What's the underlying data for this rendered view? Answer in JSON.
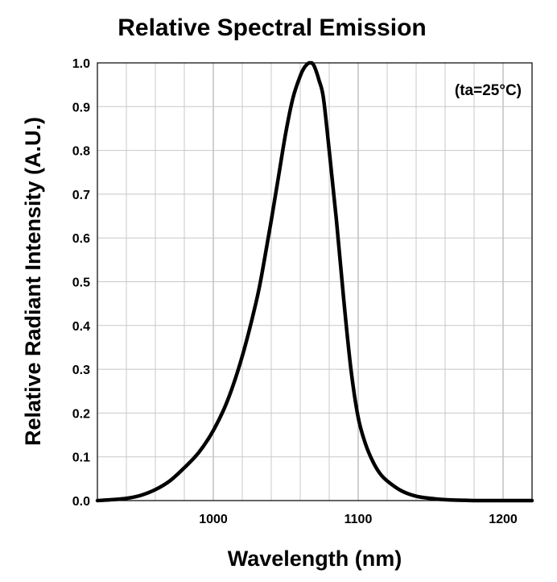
{
  "chart_data": {
    "type": "line",
    "title": "Relative Spectral Emission",
    "xlabel": "Wavelength (nm)",
    "ylabel": "Relative Radiant Intensity (A.U.)",
    "annotation": "(ta=25°C)",
    "xlim": [
      920,
      1220
    ],
    "ylim": [
      0,
      1.0
    ],
    "x_ticks": [
      1000,
      1100,
      1200
    ],
    "x_tick_labels": [
      "1000",
      "1100",
      "1200"
    ],
    "y_ticks": [
      0.0,
      0.1,
      0.2,
      0.3,
      0.4,
      0.5,
      0.6,
      0.7,
      0.8,
      0.9,
      1.0
    ],
    "y_tick_labels": [
      "0.0",
      "0.1",
      "0.2",
      "0.3",
      "0.4",
      "0.5",
      "0.6",
      "0.7",
      "0.8",
      "0.9",
      "1.0"
    ],
    "grid": true,
    "grid_x_step": 20,
    "grid_y_step": 0.1,
    "series": [
      {
        "color": "#000000",
        "x": [
          920,
          930,
          940,
          950,
          960,
          970,
          980,
          990,
          1000,
          1010,
          1020,
          1030,
          1035,
          1040,
          1045,
          1050,
          1055,
          1060,
          1063,
          1066,
          1068,
          1070,
          1073,
          1076,
          1080,
          1085,
          1090,
          1095,
          1100,
          1105,
          1110,
          1115,
          1120,
          1130,
          1140,
          1150,
          1160,
          1170,
          1180,
          1190,
          1200,
          1210,
          1220
        ],
        "y": [
          0.0,
          0.002,
          0.005,
          0.012,
          0.025,
          0.045,
          0.075,
          0.11,
          0.16,
          0.23,
          0.33,
          0.46,
          0.545,
          0.64,
          0.74,
          0.84,
          0.92,
          0.97,
          0.99,
          1.0,
          1.0,
          0.99,
          0.96,
          0.92,
          0.8,
          0.64,
          0.46,
          0.3,
          0.19,
          0.13,
          0.09,
          0.062,
          0.045,
          0.022,
          0.01,
          0.005,
          0.002,
          0.001,
          0.0,
          0.0,
          0.0,
          0.0,
          0.0
        ]
      }
    ]
  }
}
